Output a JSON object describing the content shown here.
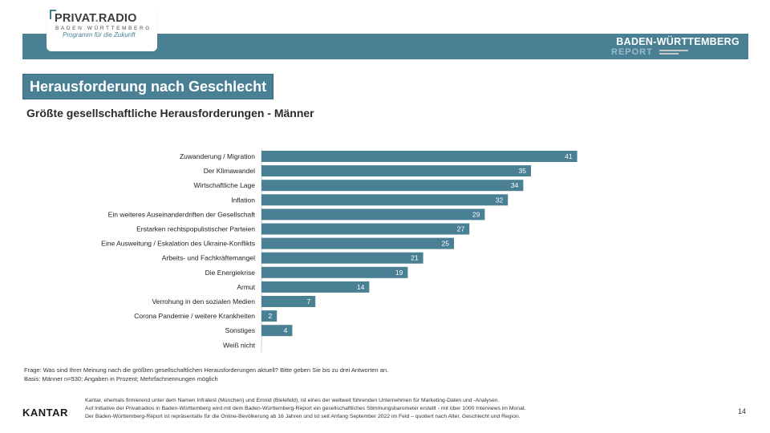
{
  "header": {
    "logo_title_a": "PRIVAT",
    "logo_title_dot": ".",
    "logo_title_b": "RADIO",
    "logo_sub": "BADEN WÜRTTEMBERG",
    "logo_tag": "Programm für die Zukunft",
    "report_title": "BADEN-WÜRTTEMBERG",
    "report_sub": "REPORT",
    "bar_color": "#4a8094"
  },
  "section_title": "Herausforderung nach Geschlecht",
  "chart_subtitle": "Größte gesellschaftliche Herausforderungen - Männer",
  "chart_data": {
    "type": "bar",
    "orientation": "horizontal",
    "title": "Größte gesellschaftliche Herausforderungen - Männer",
    "categories": [
      "Zuwanderung / Migration",
      "Der Klimawandel",
      "Wirtschaftliche Lage",
      "Inflation",
      "Ein weiteres Auseinanderdriften der Gesellschaft",
      "Erstarken rechtspopulistischer Parteien",
      "Eine Ausweitung / Eskalation des Ukraine-Konflikts",
      "Arbeits- und Fachkräftemangel",
      "Die Energiekrise",
      "Armut",
      "Verrohung in den sozialen Medien",
      "Corona Pandemie / weitere Krankheiten",
      "Sonstiges",
      "Weiß nicht"
    ],
    "values": [
      41,
      35,
      34,
      32,
      29,
      27,
      25,
      21,
      19,
      14,
      7,
      2,
      4,
      0
    ],
    "value_labels": [
      "41",
      "35",
      "34",
      "32",
      "29",
      "27",
      "25",
      "21",
      "19",
      "14",
      "7",
      "2",
      "4",
      ""
    ],
    "bar_color": "#4a8094",
    "label_color": "#ffffff",
    "xlim": [
      0,
      45
    ],
    "grid": false
  },
  "notes": {
    "question": "Frage: Was sind Ihrer Meinung nach die größten gesellschaftlichen Herausforderungen aktuell? Bitte geben Sie bis zu drei Antworten an.",
    "basis": "Basis: Männer n=530; Angaben in Prozent; Mehrfachnennungen möglich"
  },
  "footer": {
    "kantar": "KANTAR",
    "line1": "Kantar, ehemals firmierend unter dem Namen Infratest (München) und Emnid (Bielefeld), ist eines der weltweit führenden Unternehmen für Marketing-Daten und -Analysen.",
    "line2": "Auf Initiative der Privatradios in Baden-Württemberg wird mit dem Baden-Württemberg-Report ein gesellschaftliches Stimmungsbarometer erstellt - mit über 1000 Interviews im Monat.",
    "line3": "Der Baden-Württemberg-Report ist repräsentativ für die Online-Bevölkerung ab 16 Jahren und ist seit Anfang September 2022 im Feld – quotiert nach Alter, Geschlecht und Region.",
    "page_number": "14"
  }
}
